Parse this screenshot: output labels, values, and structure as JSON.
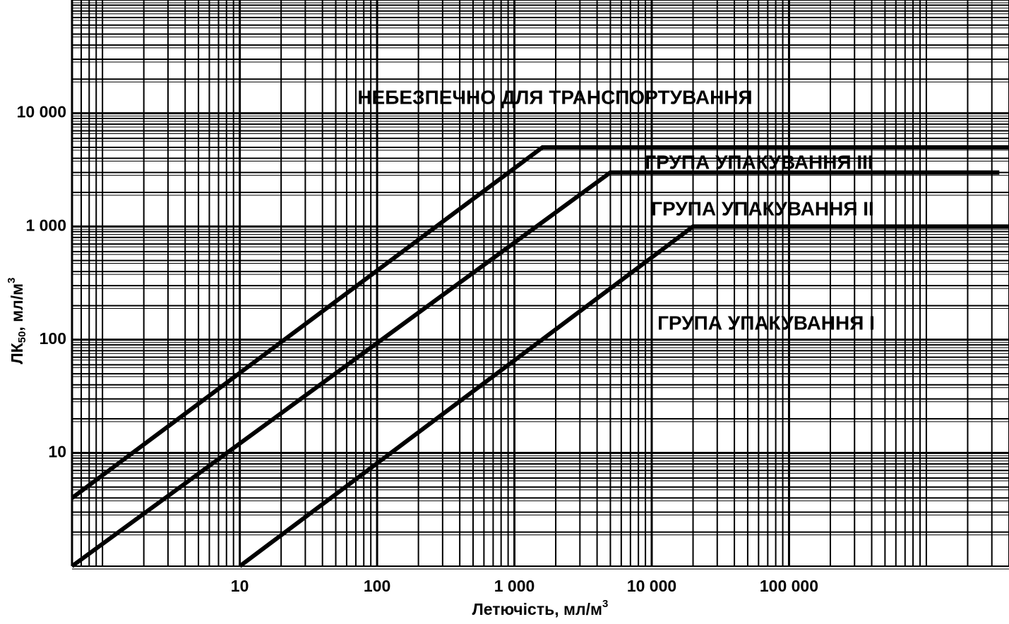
{
  "chart_data": {
    "type": "line",
    "xlabel": [
      "Летючість, мл/м",
      "3"
    ],
    "ylabel": [
      "ЛК",
      "50",
      ", мл/м",
      "3"
    ],
    "xscale": "log",
    "yscale": "log",
    "xlim": [
      0.6,
      4000000
    ],
    "ylim": [
      1,
      100000
    ],
    "xticks": [
      10,
      100,
      {
        "value": 1000,
        "label": "1 000"
      },
      {
        "value": 10000,
        "label": "10 000"
      },
      {
        "value": 100000,
        "label": "100 000"
      }
    ],
    "yticks": [
      10,
      100,
      {
        "value": 1000,
        "label": "1 000"
      },
      {
        "value": 10000,
        "label": "10 000"
      }
    ],
    "grid": true,
    "series": [
      {
        "color": "#000000",
        "x": [
          0.6,
          1600,
          4000000
        ],
        "values": [
          4,
          5000,
          5000
        ]
      },
      {
        "color": "#000000",
        "x": [
          0.6,
          5000,
          3400000
        ],
        "values": [
          1,
          3000,
          3000
        ]
      },
      {
        "color": "#000000",
        "x": [
          10,
          20000,
          4000000
        ],
        "values": [
          1,
          1000,
          1000
        ]
      }
    ],
    "annotations": [
      "НЕБЕЗПЕЧНО ДЛЯ ТРАНСПОРТУВАННЯ",
      "ГРУПА УПАКУВАННЯ III",
      "ГРУПА УПАКУВАННЯ II",
      "ГРУПА УПАКУВАННЯ I"
    ]
  }
}
